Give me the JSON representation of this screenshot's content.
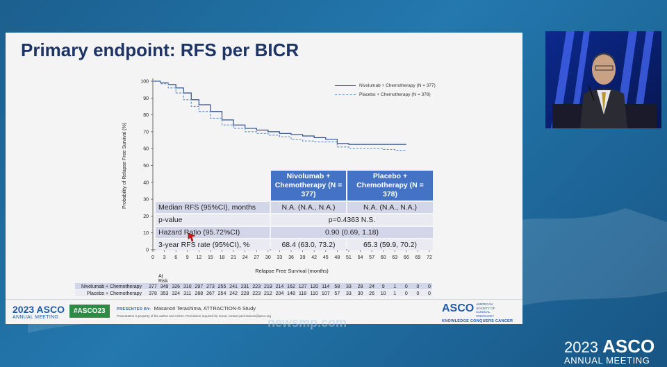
{
  "slide_title": "Primary endpoint: RFS per BICR",
  "chart_data": {
    "type": "line",
    "title": "",
    "xlabel": "Relapse Free Survival (months)",
    "ylabel": "Probability of Relapse Free Survival (%)",
    "xlim": [
      0,
      72
    ],
    "ylim": [
      0,
      100
    ],
    "xticks": [
      "0",
      "3",
      "6",
      "9",
      "12",
      "15",
      "18",
      "21",
      "24",
      "27",
      "30",
      "33",
      "36",
      "39",
      "42",
      "45",
      "48",
      "51",
      "54",
      "57",
      "60",
      "63",
      "66",
      "69",
      "72"
    ],
    "yticks": [
      "0",
      "10",
      "20",
      "30",
      "40",
      "50",
      "60",
      "70",
      "80",
      "90",
      "100"
    ],
    "legend_position": "top-right",
    "series": [
      {
        "name": "Nivolumab + Chemotherapy (N = 377)",
        "style": "solid",
        "color": "#2e4f8c",
        "x": [
          0,
          2,
          4,
          6,
          8,
          10,
          12,
          15,
          18,
          21,
          24,
          27,
          30,
          33,
          36,
          39,
          42,
          45,
          48,
          51,
          54,
          57,
          60,
          63,
          66
        ],
        "y": [
          100,
          99,
          98,
          96,
          93,
          89,
          86,
          82,
          77,
          74,
          72,
          71,
          70,
          69,
          68.4,
          67.5,
          66.5,
          65.5,
          63,
          62.5,
          62.5,
          62.5,
          62.5,
          62.5,
          62.5
        ]
      },
      {
        "name": "Placebo + Chemotherapy (N = 378)",
        "style": "dashed",
        "color": "#6a94cc",
        "x": [
          0,
          2,
          4,
          6,
          8,
          10,
          12,
          15,
          18,
          21,
          24,
          27,
          30,
          33,
          36,
          39,
          42,
          45,
          48,
          51,
          54,
          57,
          60,
          63,
          66
        ],
        "y": [
          100,
          98.5,
          96,
          93,
          89,
          85,
          82,
          78,
          74,
          72,
          70,
          69,
          68,
          67,
          65.3,
          64.5,
          64,
          64,
          61,
          60,
          60,
          60,
          59.5,
          59,
          59
        ]
      }
    ],
    "legend": [
      "Nivolumab + Chemotherapy (N = 377)",
      "Placebo + Chemotherapy (N = 378)"
    ]
  },
  "table": {
    "headers": [
      "Nivolumab + Chemotherapy (N = 377)",
      "Placebo + Chemotherapy (N = 378)"
    ],
    "rows": [
      {
        "label": "Median RFS (95%CI), months",
        "nivo": "N.A. (N.A., N.A.)",
        "placebo": "N.A. (N.A., N.A.)"
      },
      {
        "label": "p-value",
        "merged": "p=0.4363 N.S."
      },
      {
        "label": "Hazard Ratio (95.72%CI)",
        "merged": "0.90 (0.69, 1.18)"
      },
      {
        "label": "3-year RFS rate (95%CI), %",
        "nivo": "68.4 (63.0, 73.2)",
        "placebo": "65.3 (59.9, 70.2)"
      }
    ]
  },
  "at_risk": {
    "header": "At Risk",
    "rows": [
      {
        "label": "Nivolumab + Chemotherapy",
        "values": [
          "377",
          "349",
          "326",
          "310",
          "297",
          "273",
          "255",
          "241",
          "231",
          "223",
          "219",
          "214",
          "162",
          "127",
          "120",
          "114",
          "58",
          "33",
          "28",
          "24",
          "9",
          "1",
          "0",
          "0",
          "0"
        ]
      },
      {
        "label": "Placebo + Chemotherapy",
        "values": [
          "378",
          "353",
          "324",
          "311",
          "288",
          "267",
          "254",
          "242",
          "228",
          "223",
          "212",
          "204",
          "148",
          "118",
          "110",
          "107",
          "57",
          "33",
          "30",
          "26",
          "10",
          "1",
          "0",
          "0",
          "0"
        ]
      }
    ]
  },
  "footer": {
    "year": "2023",
    "asco": "ASCO",
    "annual_meeting": "ANNUAL MEETING",
    "hashtag": "#ASCO23",
    "presented_by_label": "PRESENTED BY:",
    "presenter": "Masanori Terashima, ATTRACTION-5 Study",
    "disclaimer": "Presentation is property of the author and ASCO. Permission required for reuse; contact permissions@asco.org",
    "asco_right": "ASCO",
    "asco_right_small": "AMERICAN SOCIETY OF CLINICAL ONCOLOGY",
    "tagline": "KNOWLEDGE CONQUERS CANCER"
  },
  "watermark": "newsmp.com",
  "bottom_branding": {
    "year": "2023",
    "asco": "ASCO",
    "annual_meeting": "ANNUAL MEETING"
  },
  "colors": {
    "title": "#1e3464",
    "table_header": "#4472c4",
    "nivo_line": "#2e4f8c",
    "placebo_line": "#6a94cc",
    "asco_blue": "#1e5aa8",
    "hashtag_green": "#2e8b45"
  }
}
